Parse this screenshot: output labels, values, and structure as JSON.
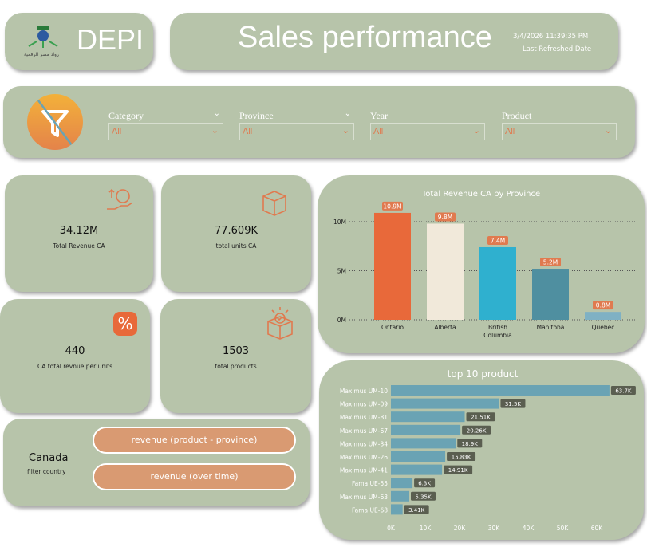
{
  "logo": {
    "text": "DEPI",
    "caption": "رواد مصر الرقمية"
  },
  "header": {
    "title": "Sales performance",
    "refreshed_value": "3/4/2026 11:39:35 PM",
    "refreshed_label": "Last Refreshed Date"
  },
  "filters": [
    {
      "label": "Category",
      "value": "All"
    },
    {
      "label": "Province",
      "value": "All"
    },
    {
      "label": "Year",
      "value": "All"
    },
    {
      "label": "Product",
      "value": "All"
    }
  ],
  "kpis": [
    {
      "value": "34.12M",
      "label": "Total Revenue CA",
      "icon": "money-hand-icon"
    },
    {
      "value": "77.609K",
      "label": "total units CA",
      "icon": "box-icon"
    },
    {
      "value": "440",
      "label": "CA total revnue per units",
      "icon": "percent-icon"
    },
    {
      "value": "1503",
      "label": "total products",
      "icon": "open-box-check-icon"
    }
  ],
  "country": {
    "value": "Canada",
    "label": "filter country",
    "buttons": [
      "revenue (product - province)",
      "revenue (over time)"
    ]
  },
  "colors": {
    "panel": "#b7c4aa",
    "accent": "#e07a4f",
    "button": "#d99a72"
  },
  "chart_data": [
    {
      "type": "bar",
      "title": "Total Revenue CA by Province",
      "categories": [
        "Ontario",
        "Alberta",
        "British Columbia",
        "Manitoba",
        "Quebec"
      ],
      "values": [
        10.9,
        9.8,
        7.4,
        5.2,
        0.8
      ],
      "data_labels": [
        "10.9M",
        "9.8M",
        "7.4M",
        "5.2M",
        "0.8M"
      ],
      "yticks": [
        "0M",
        "5M",
        "10M"
      ],
      "ylim": [
        0,
        10.9
      ],
      "grid": true,
      "bar_colors": [
        "#e8693a",
        "#f1e9da",
        "#2fb0cf",
        "#4f8fa0",
        "#7fb1c4"
      ]
    },
    {
      "type": "bar",
      "orientation": "horizontal",
      "title": "top 10 product",
      "categories": [
        "Maximus UM-10",
        "Maximus UM-09",
        "Maximus UM-81",
        "Maximus UM-67",
        "Maximus UM-34",
        "Maximus UM-26",
        "Maximus UM-41",
        "Fama UE-55",
        "Maximus UM-63",
        "Fama UE-68"
      ],
      "values": [
        63.7,
        31.5,
        21.51,
        20.26,
        18.9,
        15.83,
        14.91,
        6.3,
        5.35,
        3.41
      ],
      "data_labels": [
        "63.7K",
        "31.5K",
        "21.51K",
        "20.26K",
        "18.9K",
        "15.83K",
        "14.91K",
        "6.3K",
        "5.35K",
        "3.41K"
      ],
      "xticks": [
        "0K",
        "10K",
        "20K",
        "30K",
        "40K",
        "50K",
        "60K"
      ],
      "xlim": [
        0,
        60
      ],
      "bar_color": "#6aa3b4"
    }
  ]
}
